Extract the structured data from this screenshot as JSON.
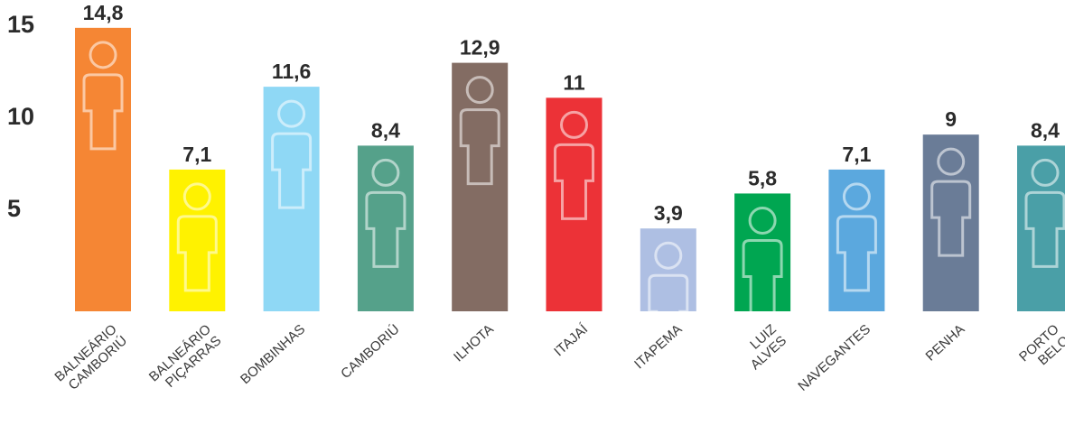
{
  "chart_data": {
    "type": "bar",
    "categories": [
      [
        "BALNEÁRIO",
        "CAMBORIÚ"
      ],
      [
        "BALNEÁRIO",
        "PIÇARRAS"
      ],
      [
        "BOMBINHAS"
      ],
      [
        "CAMBORIÚ"
      ],
      [
        "ILHOTA"
      ],
      [
        "ITAJAÍ"
      ],
      [
        "ITAPEMA"
      ],
      [
        "LUIZ",
        "ALVES"
      ],
      [
        "NAVEGANTES"
      ],
      [
        "PENHA"
      ],
      [
        "PORTO",
        "BELO"
      ]
    ],
    "values": [
      14.8,
      7.1,
      11.6,
      8.4,
      12.9,
      11,
      3.9,
      5.8,
      7.1,
      9,
      8.4
    ],
    "value_labels": [
      "14,8",
      "7,1",
      "11,6",
      "8,4",
      "12,9",
      "11",
      "3,9",
      "5,8",
      "7,1",
      "9",
      "8,4"
    ],
    "colors": [
      "#f58634",
      "#fff200",
      "#8fd8f5",
      "#55a18a",
      "#836c63",
      "#ec3237",
      "#aebfe3",
      "#00a651",
      "#5ba8de",
      "#6a7c97",
      "#4a9fa7"
    ],
    "yticks": [
      "5",
      "10",
      "15"
    ],
    "ylim": [
      0,
      15
    ],
    "grid": true,
    "icon": "person-icon",
    "title": "",
    "xlabel": "",
    "ylabel": ""
  }
}
